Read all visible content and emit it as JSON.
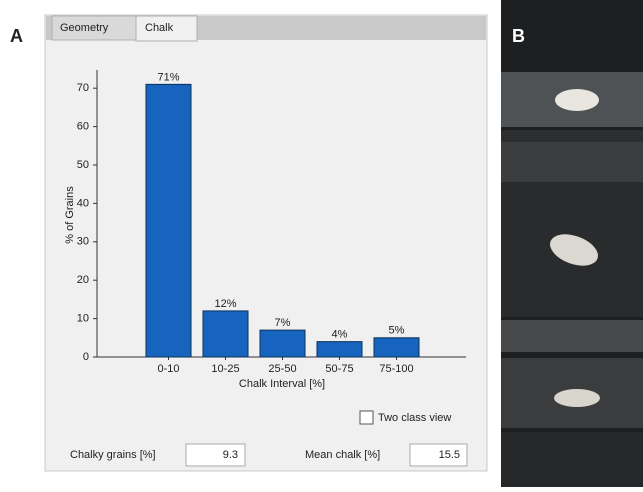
{
  "panel_labels": [
    "A",
    "B"
  ],
  "tabs": [
    "Geometry",
    "Chalk"
  ],
  "chart_data": {
    "type": "bar",
    "ylabel": "% of Grains",
    "xlabel": "Chalk Interval [%]",
    "categories": [
      "0-10",
      "10-25",
      "25-50",
      "50-75",
      "75-100"
    ],
    "values": [
      71,
      12,
      7,
      4,
      5
    ],
    "value_labels": [
      "71%",
      "12%",
      "7%",
      "4%",
      "5%"
    ],
    "color": "#1764bf",
    "ylim": [
      0,
      75
    ],
    "yticks": [
      0,
      10,
      20,
      30,
      40,
      50,
      60,
      70
    ]
  },
  "checkbox": {
    "label": "Two class view",
    "checked": false
  },
  "fields": [
    {
      "label": "Chalky grains [%]",
      "value": 9.3
    },
    {
      "label": "Mean chalk [%]",
      "value": 15.5
    }
  ]
}
